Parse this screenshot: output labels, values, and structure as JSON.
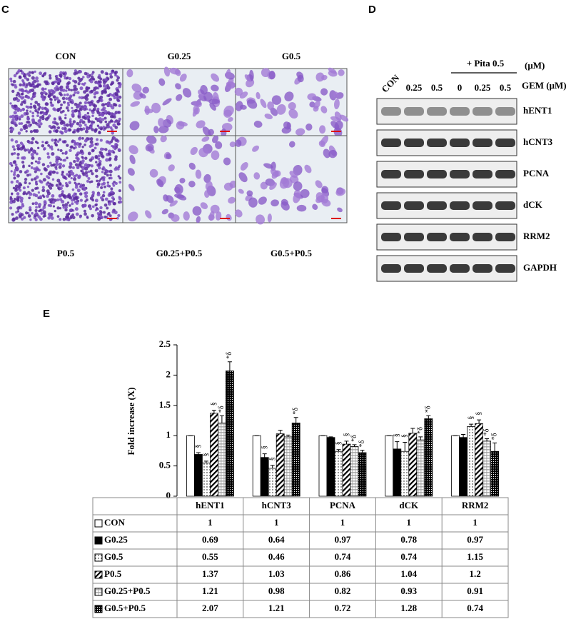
{
  "panels": {
    "c": {
      "label": "C",
      "images": [
        {
          "label": "CON"
        },
        {
          "label": "G0.25"
        },
        {
          "label": "G0.5"
        },
        {
          "label": "P0.5"
        },
        {
          "label": "G0.25+P0.5"
        },
        {
          "label": "G0.5+P0.5"
        }
      ]
    },
    "d": {
      "label": "D",
      "treatment": "+ Pita 0.5",
      "unit": "(μM)",
      "gem": "GEM (μM)",
      "lanes": [
        "CON",
        "0.25",
        "0.5",
        "0",
        "0.25",
        "0.5"
      ],
      "blots": [
        "hENT1",
        "hCNT3",
        "PCNA",
        "dCK",
        "RRM2",
        "GAPDH"
      ]
    },
    "e": {
      "label": "E"
    }
  },
  "chart_data": {
    "type": "bar",
    "ylabel": "Fold increase (X)",
    "categories": [
      "hENT1",
      "hCNT3",
      "PCNA",
      "dCK",
      "RRM2"
    ],
    "ylim": [
      0,
      2.5
    ],
    "yticks": [
      0,
      0.5,
      1,
      1.5,
      2,
      2.5
    ],
    "series": [
      {
        "name": "CON",
        "color": "#ffffff",
        "pattern": "solid",
        "values": [
          1,
          1,
          1,
          1,
          1
        ],
        "errors": [
          0,
          0,
          0,
          0,
          0
        ],
        "annotations": [
          null,
          null,
          null,
          null,
          null
        ]
      },
      {
        "name": "G0.25",
        "color": "#000000",
        "pattern": "solid",
        "values": [
          0.69,
          0.64,
          0.97,
          0.78,
          0.97
        ],
        "errors": [
          0.03,
          0.06,
          0.01,
          0.12,
          0.05
        ],
        "annotations": [
          "§",
          "§",
          null,
          "§",
          null
        ]
      },
      {
        "name": "G0.5",
        "color": "#ffffff",
        "pattern": "dots",
        "values": [
          0.55,
          0.46,
          0.74,
          0.74,
          1.15
        ],
        "errors": [
          0.03,
          0.05,
          0.03,
          0.15,
          0.04
        ],
        "annotations": [
          "§",
          "§",
          "§",
          "§",
          "§"
        ]
      },
      {
        "name": "P0.5",
        "color": "#ffffff",
        "pattern": "diagonal",
        "values": [
          1.37,
          1.03,
          0.86,
          1.04,
          1.2
        ],
        "errors": [
          0.05,
          0.06,
          0.05,
          0.08,
          0.06
        ],
        "annotations": [
          "§",
          null,
          "§",
          null,
          "§"
        ]
      },
      {
        "name": "G0.25+P0.5",
        "color": "#ffffff",
        "pattern": "grid",
        "values": [
          1.21,
          0.98,
          0.82,
          0.93,
          0.91
        ],
        "errors": [
          0.12,
          0.03,
          0.03,
          0.05,
          0.04
        ],
        "annotations": [
          "*δ",
          null,
          "*δ",
          "*δ",
          "*δ"
        ]
      },
      {
        "name": "G0.5+P0.5",
        "color": "#000000",
        "pattern": "dense-dots",
        "values": [
          2.07,
          1.21,
          0.72,
          1.28,
          0.74
        ],
        "errors": [
          0.15,
          0.09,
          0.04,
          0.05,
          0.14
        ],
        "annotations": [
          "*δ",
          "*δ",
          "*δ",
          "*δ",
          "*δ"
        ]
      }
    ]
  }
}
